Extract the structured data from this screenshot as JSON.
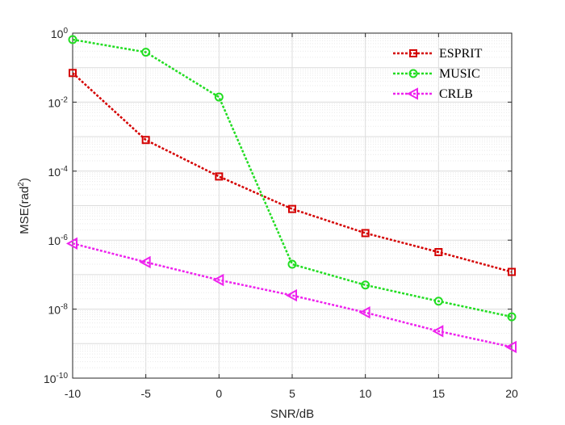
{
  "chart_data": {
    "type": "line",
    "x": [
      -10,
      -5,
      0,
      5,
      10,
      15,
      20
    ],
    "xlabel": "SNR/dB",
    "ylabel_base": "MSE(rad",
    "ylabel_sup": "2",
    "ylabel_end": ")",
    "xlim": [
      -10,
      20
    ],
    "ylim": [
      1e-10,
      1
    ],
    "yscale": "log",
    "grid": true,
    "legend_position": "top-right",
    "xticks": [
      "-10",
      "-5",
      "0",
      "5",
      "10",
      "15",
      "20"
    ],
    "yticks": [
      {
        "base": "10",
        "exp": "-10"
      },
      {
        "base": "10",
        "exp": "-8"
      },
      {
        "base": "10",
        "exp": "-6"
      },
      {
        "base": "10",
        "exp": "-4"
      },
      {
        "base": "10",
        "exp": "-2"
      },
      {
        "base": "10",
        "exp": "0"
      }
    ],
    "series": [
      {
        "name": "ESPRIT",
        "color": "#d40000",
        "marker": "square",
        "values": [
          0.07,
          0.0008,
          7e-05,
          8e-06,
          1.6e-06,
          4.5e-07,
          1.2e-07
        ]
      },
      {
        "name": "MUSIC",
        "color": "#22dd22",
        "marker": "circle",
        "values": [
          0.65,
          0.28,
          0.014,
          2e-07,
          5e-08,
          1.7e-08,
          6e-09
        ]
      },
      {
        "name": "CRLB",
        "color": "#ee22ee",
        "marker": "triangle-left",
        "values": [
          8e-07,
          2.3e-07,
          7e-08,
          2.5e-08,
          8e-09,
          2.3e-09,
          8e-10
        ]
      }
    ]
  }
}
